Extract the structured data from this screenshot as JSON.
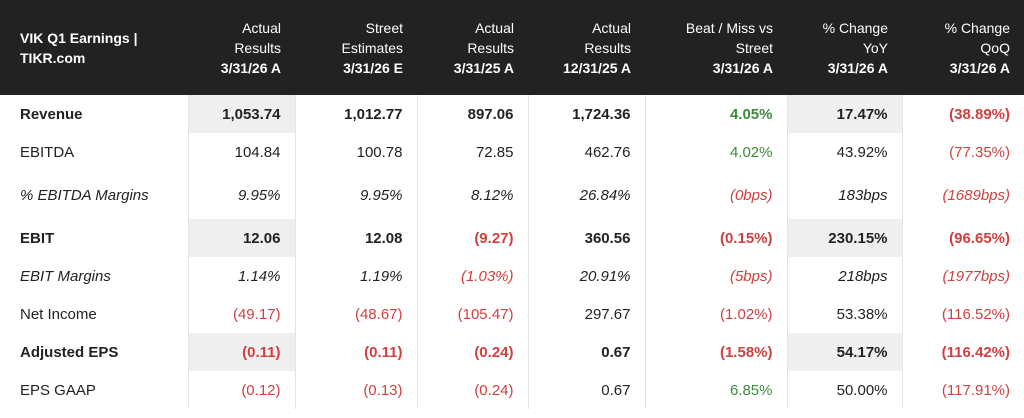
{
  "header": {
    "corner": [
      "VIK Q1 Earnings |",
      "TIKR.com"
    ],
    "columns": [
      {
        "lines": [
          "Actual",
          "Results"
        ],
        "date": "3/31/26 A"
      },
      {
        "lines": [
          "Street",
          "Estimates"
        ],
        "date": "3/31/26 E"
      },
      {
        "lines": [
          "Actual",
          "Results"
        ],
        "date": "3/31/25 A"
      },
      {
        "lines": [
          "Actual",
          "Results"
        ],
        "date": "12/31/25 A"
      },
      {
        "lines": [
          "Beat / Miss vs",
          "Street"
        ],
        "date": "3/31/26 A"
      },
      {
        "lines": [
          "% Change",
          "YoY"
        ],
        "date": "3/31/26 A"
      },
      {
        "lines": [
          "% Change",
          "QoQ"
        ],
        "date": "3/31/26 A"
      }
    ]
  },
  "rows": [
    {
      "label": "Revenue",
      "style": "bold",
      "height": 38,
      "cells": [
        {
          "v": "1,053.74",
          "c": "neu"
        },
        {
          "v": "1,012.77",
          "c": "neu"
        },
        {
          "v": "897.06",
          "c": "neu"
        },
        {
          "v": "1,724.36",
          "c": "neu"
        },
        {
          "v": "4.05%",
          "c": "pos"
        },
        {
          "v": "17.47%",
          "c": "neu"
        },
        {
          "v": "(38.89%)",
          "c": "neg"
        }
      ]
    },
    {
      "label": "EBITDA",
      "style": "",
      "height": 38,
      "cells": [
        {
          "v": "104.84",
          "c": "neu"
        },
        {
          "v": "100.78",
          "c": "neu"
        },
        {
          "v": "72.85",
          "c": "neu"
        },
        {
          "v": "462.76",
          "c": "neu"
        },
        {
          "v": "4.02%",
          "c": "pos"
        },
        {
          "v": "43.92%",
          "c": "neu"
        },
        {
          "v": "(77.35%)",
          "c": "neg"
        }
      ]
    },
    {
      "label": "% EBITDA Margins",
      "style": "ital",
      "height": 48,
      "cells": [
        {
          "v": "9.95%",
          "c": "neu"
        },
        {
          "v": "9.95%",
          "c": "neu"
        },
        {
          "v": "8.12%",
          "c": "neu"
        },
        {
          "v": "26.84%",
          "c": "neu"
        },
        {
          "v": "(0bps)",
          "c": "neg"
        },
        {
          "v": "183bps",
          "c": "neu"
        },
        {
          "v": "(1689bps)",
          "c": "neg"
        }
      ]
    },
    {
      "label": "EBIT",
      "style": "bold",
      "height": 38,
      "cells": [
        {
          "v": "12.06",
          "c": "neu"
        },
        {
          "v": "12.08",
          "c": "neu"
        },
        {
          "v": "(9.27)",
          "c": "neg"
        },
        {
          "v": "360.56",
          "c": "neu"
        },
        {
          "v": "(0.15%)",
          "c": "neg"
        },
        {
          "v": "230.15%",
          "c": "neu"
        },
        {
          "v": "(96.65%)",
          "c": "neg"
        }
      ]
    },
    {
      "label": "EBIT Margins",
      "style": "ital",
      "height": 38,
      "cells": [
        {
          "v": "1.14%",
          "c": "neu"
        },
        {
          "v": "1.19%",
          "c": "neu"
        },
        {
          "v": "(1.03%)",
          "c": "neg"
        },
        {
          "v": "20.91%",
          "c": "neu"
        },
        {
          "v": "(5bps)",
          "c": "neg"
        },
        {
          "v": "218bps",
          "c": "neu"
        },
        {
          "v": "(1977bps)",
          "c": "neg"
        }
      ]
    },
    {
      "label": "Net Income",
      "style": "",
      "height": 38,
      "cells": [
        {
          "v": "(49.17)",
          "c": "neg"
        },
        {
          "v": "(48.67)",
          "c": "neg"
        },
        {
          "v": "(105.47)",
          "c": "neg"
        },
        {
          "v": "297.67",
          "c": "neu"
        },
        {
          "v": "(1.02%)",
          "c": "neg"
        },
        {
          "v": "53.38%",
          "c": "neu"
        },
        {
          "v": "(116.52%)",
          "c": "neg"
        }
      ]
    },
    {
      "label": "Adjusted EPS",
      "style": "bold",
      "height": 38,
      "cells": [
        {
          "v": "(0.11)",
          "c": "neg"
        },
        {
          "v": "(0.11)",
          "c": "neg"
        },
        {
          "v": "(0.24)",
          "c": "neg"
        },
        {
          "v": "0.67",
          "c": "neu"
        },
        {
          "v": "(1.58%)",
          "c": "neg"
        },
        {
          "v": "54.17%",
          "c": "neu"
        },
        {
          "v": "(116.42%)",
          "c": "neg"
        }
      ]
    },
    {
      "label": "EPS GAAP",
      "style": "",
      "height": 38,
      "cells": [
        {
          "v": "(0.12)",
          "c": "neg"
        },
        {
          "v": "(0.13)",
          "c": "neg"
        },
        {
          "v": "(0.24)",
          "c": "neg"
        },
        {
          "v": "0.67",
          "c": "neu"
        },
        {
          "v": "6.85%",
          "c": "pos"
        },
        {
          "v": "50.00%",
          "c": "neu"
        },
        {
          "v": "(117.91%)",
          "c": "neg"
        }
      ]
    }
  ],
  "colors": {
    "header_bg": "#222222",
    "positive": "#3d8a3d",
    "negative": "#d04040",
    "shade": "#efefef"
  }
}
